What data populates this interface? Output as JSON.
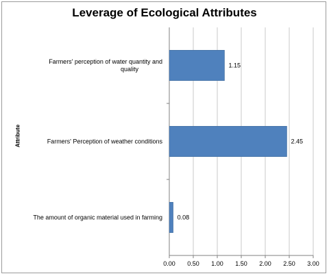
{
  "chart_data": {
    "type": "bar",
    "orientation": "horizontal",
    "title": "Leverage of Ecological Attributes",
    "ylabel": "Attribute",
    "xlabel": "",
    "categories": [
      [
        "Farmers' perception of water quantity and",
        "quality"
      ],
      [
        "Farmers' Perception of weather conditions"
      ],
      [
        "The amount of organic material used in farming"
      ]
    ],
    "values": [
      1.15,
      2.45,
      0.08
    ],
    "value_labels": [
      "1.15",
      "2.45",
      "0.08"
    ],
    "xlim": [
      0,
      3
    ],
    "xticks": [
      "0.00",
      "0.50",
      "1.00",
      "1.50",
      "2.00",
      "2.50",
      "3.00"
    ],
    "xtick_values": [
      0,
      0.5,
      1,
      1.5,
      2,
      2.5,
      3
    ],
    "grid": true,
    "bar_color": "#4f81bd"
  }
}
